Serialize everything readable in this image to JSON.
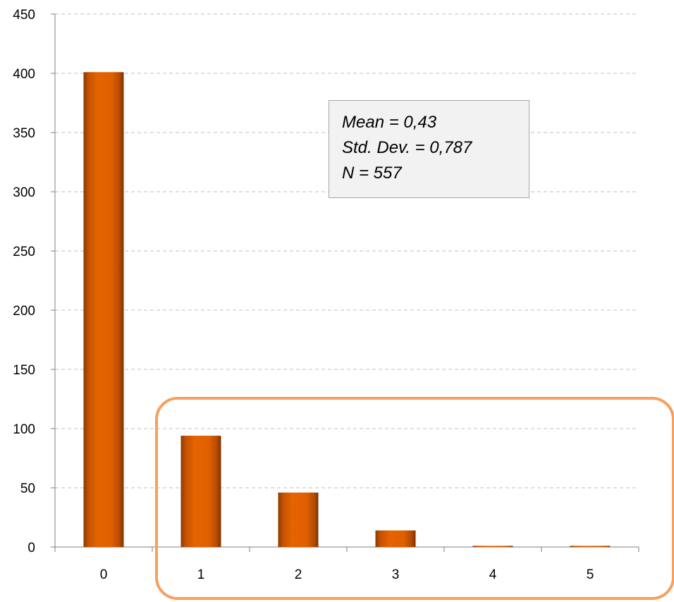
{
  "chart_data": {
    "type": "bar",
    "categories": [
      "0",
      "1",
      "2",
      "3",
      "4",
      "5"
    ],
    "values": [
      401,
      94,
      46,
      14,
      1,
      1
    ],
    "ylim": [
      0,
      450
    ],
    "yticks": [
      "0",
      "50",
      "100",
      "150",
      "200",
      "250",
      "300",
      "350",
      "400",
      "450"
    ],
    "grid": true,
    "title": "",
    "xlabel": "",
    "ylabel": "",
    "annotation": {
      "lines": [
        "Mean = 0,43",
        "Std. Dev. = 0,787",
        "N = 557"
      ]
    },
    "highlighted_categories": [
      "1",
      "2",
      "3",
      "4",
      "5"
    ]
  },
  "colors": {
    "bar": "#e05f00",
    "bar_dark": "#8a3a00",
    "grid": "#bfbfbf",
    "axis": "#808080",
    "highlight": "#f5a05f",
    "stats_bg": "#f2f2f2"
  }
}
